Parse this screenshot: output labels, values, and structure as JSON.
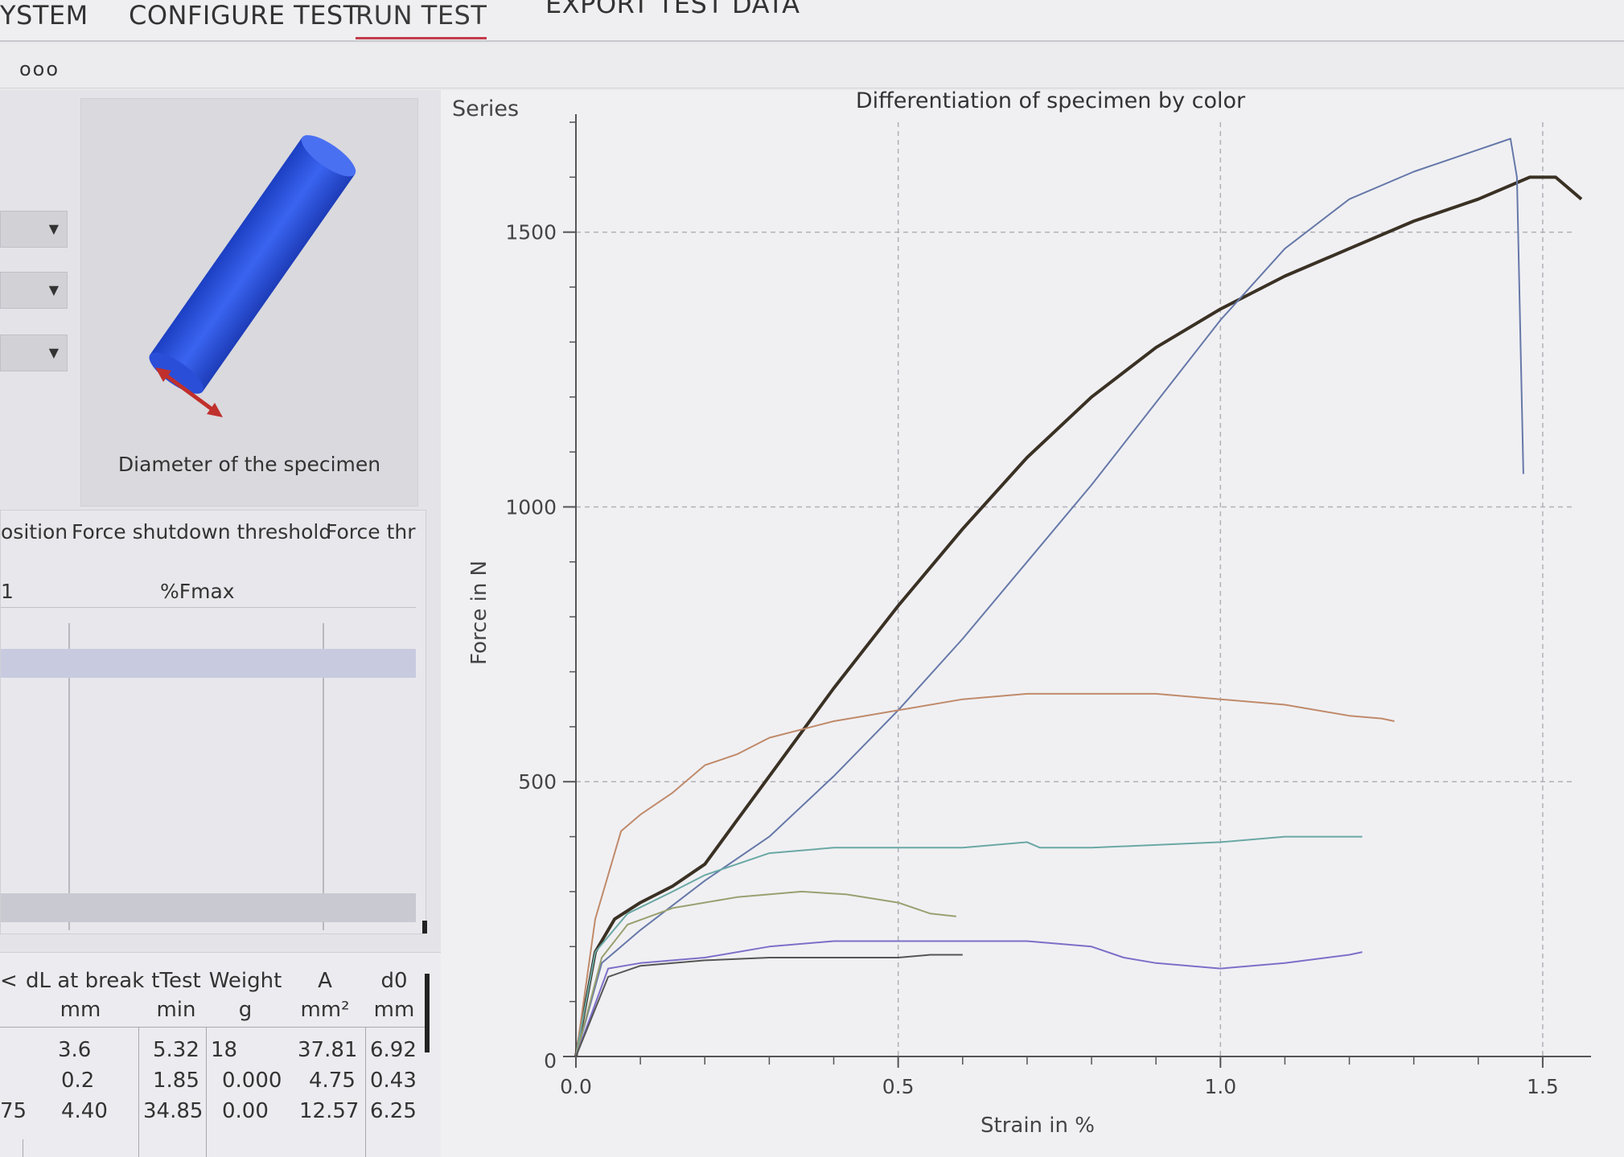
{
  "nav": {
    "tabs": [
      {
        "label": "YSTEM"
      },
      {
        "label": "CONFIGURE TEST"
      },
      {
        "label": "RUN TEST"
      },
      {
        "label": "EXPORT TEST DATA"
      }
    ],
    "more": "ooo"
  },
  "specimen": {
    "caption": "Diameter of the specimen",
    "colors": {
      "body": "#2d55e0",
      "arrow": "#c0302c"
    }
  },
  "grid": {
    "headers": [
      "osition",
      "Force shutdown threshold",
      "Force thr"
    ],
    "unit_left": "1",
    "unit": "%Fmax"
  },
  "results": {
    "header_left": "<",
    "columns": [
      {
        "name": "dL at break",
        "unit": "mm"
      },
      {
        "name": "tTest",
        "unit": "min"
      },
      {
        "name": "Weight",
        "unit": "g"
      },
      {
        "name": "A",
        "unit": "mm²"
      },
      {
        "name": "d0",
        "unit": "mm"
      }
    ],
    "rows": [
      {
        "lead": "",
        "cells": [
          "3.6",
          "5.32",
          "18",
          "37.81",
          "6.92"
        ]
      },
      {
        "lead": "",
        "cells": [
          "0.2",
          "1.85",
          "0.000",
          "4.75",
          "0.43"
        ]
      },
      {
        "lead": "75",
        "cells": [
          "4.40",
          "34.85",
          "0.00",
          "12.57",
          "6.25"
        ]
      }
    ]
  },
  "chart_data": {
    "type": "line",
    "title": "Differentiation of specimen by color",
    "series_label": "Series",
    "xlabel": "Strain in %",
    "ylabel": "Force in N",
    "xlim": [
      0,
      1.55
    ],
    "ylim": [
      0,
      1700
    ],
    "x_ticks": [
      "0.0",
      "0.5",
      "1.0",
      "1.5"
    ],
    "y_ticks": [
      "0",
      "500",
      "1000",
      "1500"
    ],
    "grid": true,
    "series": [
      {
        "color": "#3a3124",
        "width": 4,
        "x": [
          0,
          0.03,
          0.06,
          0.1,
          0.15,
          0.2,
          0.25,
          0.3,
          0.35,
          0.4,
          0.5,
          0.6,
          0.7,
          0.8,
          0.9,
          1.0,
          1.1,
          1.2,
          1.3,
          1.4,
          1.48,
          1.52,
          1.56
        ],
        "y": [
          0,
          190,
          250,
          280,
          310,
          350,
          430,
          510,
          590,
          670,
          820,
          960,
          1090,
          1200,
          1290,
          1360,
          1420,
          1470,
          1520,
          1560,
          1600,
          1600,
          1560
        ]
      },
      {
        "color": "#6678a8",
        "width": 2,
        "x": [
          0,
          0.04,
          0.1,
          0.2,
          0.3,
          0.4,
          0.5,
          0.6,
          0.7,
          0.8,
          0.9,
          1.0,
          1.1,
          1.2,
          1.3,
          1.4,
          1.45,
          1.46,
          1.47
        ],
        "y": [
          0,
          170,
          230,
          320,
          400,
          510,
          630,
          760,
          900,
          1040,
          1190,
          1340,
          1470,
          1560,
          1610,
          1650,
          1670,
          1600,
          1060
        ]
      },
      {
        "color": "#c08a6a",
        "width": 2,
        "x": [
          0,
          0.03,
          0.07,
          0.1,
          0.15,
          0.2,
          0.25,
          0.3,
          0.4,
          0.5,
          0.6,
          0.7,
          0.8,
          0.9,
          1.0,
          1.1,
          1.2,
          1.25,
          1.27
        ],
        "y": [
          0,
          250,
          410,
          440,
          480,
          530,
          550,
          580,
          610,
          630,
          650,
          660,
          660,
          660,
          650,
          640,
          620,
          615,
          610
        ]
      },
      {
        "color": "#6aa8a4",
        "width": 2,
        "x": [
          0,
          0.03,
          0.08,
          0.15,
          0.2,
          0.3,
          0.4,
          0.5,
          0.6,
          0.7,
          0.72,
          0.8,
          1.0,
          1.1,
          1.2,
          1.22
        ],
        "y": [
          0,
          190,
          260,
          300,
          330,
          370,
          380,
          380,
          380,
          390,
          380,
          380,
          390,
          400,
          400,
          400
        ]
      },
      {
        "color": "#99a070",
        "width": 2,
        "x": [
          0,
          0.04,
          0.08,
          0.15,
          0.25,
          0.35,
          0.42,
          0.5,
          0.55,
          0.59
        ],
        "y": [
          0,
          180,
          240,
          270,
          290,
          300,
          295,
          280,
          260,
          255
        ]
      },
      {
        "color": "#7c6fc8",
        "width": 2,
        "x": [
          0,
          0.05,
          0.1,
          0.2,
          0.3,
          0.4,
          0.5,
          0.6,
          0.7,
          0.8,
          0.85,
          0.9,
          1.0,
          1.1,
          1.2,
          1.22
        ],
        "y": [
          0,
          160,
          170,
          180,
          200,
          210,
          210,
          210,
          210,
          200,
          180,
          170,
          160,
          170,
          185,
          190
        ]
      },
      {
        "color": "#555555",
        "width": 2,
        "x": [
          0,
          0.05,
          0.1,
          0.2,
          0.3,
          0.4,
          0.5,
          0.55,
          0.6
        ],
        "y": [
          0,
          145,
          165,
          175,
          180,
          180,
          180,
          185,
          185
        ]
      }
    ]
  }
}
